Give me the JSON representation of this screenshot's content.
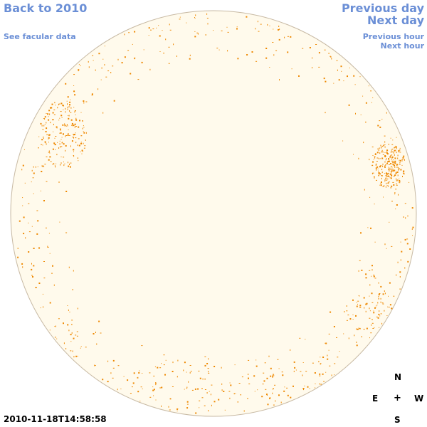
{
  "nav": {
    "back_label": "Back to 2010",
    "facular_label": "See facular data",
    "prev_day_label": "Previous day",
    "next_day_label": "Next day",
    "prev_hour_label": "Previous hour",
    "next_hour_label": "Next hour"
  },
  "timestamp": "2010-11-18T14:58:58",
  "compass": {
    "north": "N",
    "east": "E",
    "center": "+",
    "west": "W",
    "south": "S"
  },
  "colors": {
    "disk_fill": "#fffaec",
    "disk_outline": "#c7b9a3",
    "facula_color": "#ee8800",
    "link_color": "#6b8fd6"
  }
}
